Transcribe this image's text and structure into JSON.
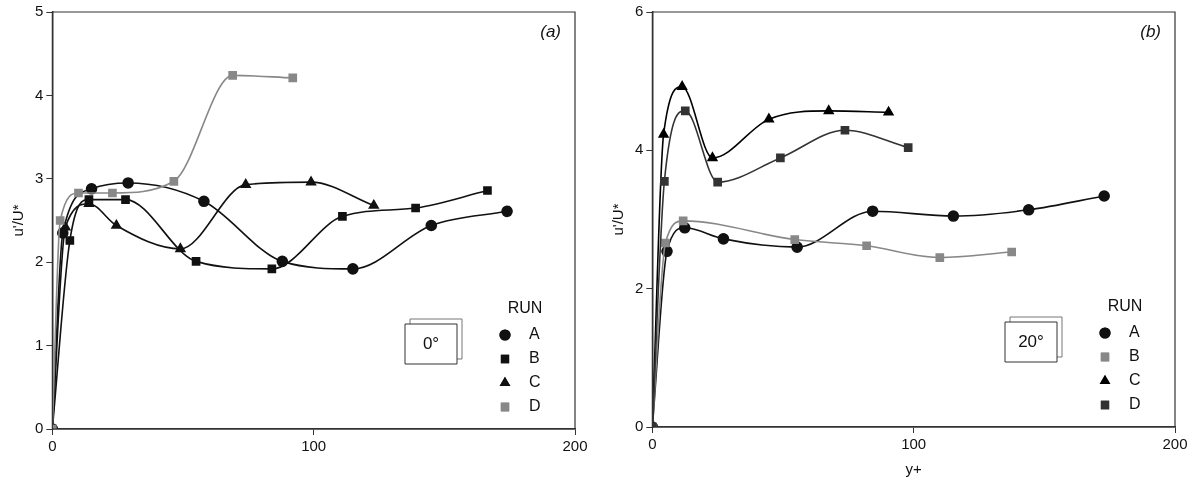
{
  "chart_data": [
    {
      "type": "line",
      "ylabel": "u'/U*",
      "legend_title": "RUN",
      "legend": "bottom right",
      "annotations": [
        "(a)",
        "0°"
      ],
      "xlim": [
        0,
        200
      ],
      "xticks": [
        0,
        100,
        200
      ],
      "ylim": [
        0,
        5
      ],
      "yticks": [
        0,
        1,
        2,
        3,
        4,
        5
      ],
      "grid": false,
      "series": [
        {
          "name": "A",
          "color": "#111111",
          "marker": "circle",
          "x": [
            0,
            4,
            15,
            29,
            58,
            88,
            115,
            145,
            174
          ],
          "values": [
            0,
            2.35,
            2.88,
            2.95,
            2.73,
            2.01,
            1.92,
            2.44,
            2.61
          ]
        },
        {
          "name": "B",
          "color": "#111111",
          "marker": "square",
          "x": [
            0,
            6.7,
            14,
            28,
            55,
            84,
            111,
            139,
            166.5
          ],
          "values": [
            0,
            2.26,
            2.75,
            2.75,
            2.01,
            1.92,
            2.55,
            2.65,
            2.86
          ]
        },
        {
          "name": "C",
          "color": "#111111",
          "marker": "triangle",
          "x": [
            0,
            5,
            14,
            24.5,
            49,
            74,
            99,
            123
          ],
          "values": [
            0,
            2.42,
            2.7,
            2.44,
            2.16,
            2.93,
            2.96,
            2.68
          ]
        },
        {
          "name": "D",
          "color": "#888888",
          "marker": "square",
          "x": [
            0,
            3,
            10,
            23,
            46.5,
            69,
            92
          ],
          "values": [
            0,
            2.5,
            2.83,
            2.83,
            2.97,
            4.24,
            4.21
          ]
        }
      ]
    },
    {
      "type": "line",
      "xlabel": "y+",
      "ylabel": "u'/U*",
      "legend_title": "RUN",
      "legend": "bottom right",
      "annotations": [
        "(b)",
        "20°"
      ],
      "xlim": [
        0,
        200
      ],
      "xticks": [
        0,
        100,
        200
      ],
      "ylim": [
        0,
        6
      ],
      "yticks": [
        0,
        2,
        4,
        6
      ],
      "grid": false,
      "series": [
        {
          "name": "A",
          "color": "#111111",
          "marker": "circle",
          "x": [
            0,
            5.6,
            12.4,
            27.2,
            55.4,
            84.3,
            115.2,
            144,
            172.9
          ],
          "values": [
            0,
            2.54,
            2.88,
            2.72,
            2.6,
            3.12,
            3.05,
            3.14,
            3.34
          ]
        },
        {
          "name": "B",
          "color": "#888888",
          "marker": "square",
          "x": [
            0,
            5,
            11.8,
            27,
            54.5,
            82,
            110,
            137.5
          ],
          "values": [
            0,
            2.66,
            2.98,
            null,
            2.71,
            2.62,
            2.45,
            2.53
          ]
        },
        {
          "name": "C",
          "color": "#000000",
          "marker": "triangle",
          "x": [
            0,
            4.3,
            11.4,
            23,
            44.6,
            67.5,
            90.4
          ],
          "values": [
            0,
            4.23,
            4.92,
            3.89,
            4.45,
            4.57,
            4.55
          ]
        },
        {
          "name": "D",
          "color": "#333333",
          "marker": "square",
          "x": [
            0,
            4.6,
            12.6,
            25,
            49,
            73.7,
            97.9
          ],
          "values": [
            0,
            3.55,
            4.57,
            3.54,
            3.89,
            4.29,
            4.04
          ]
        }
      ]
    }
  ]
}
